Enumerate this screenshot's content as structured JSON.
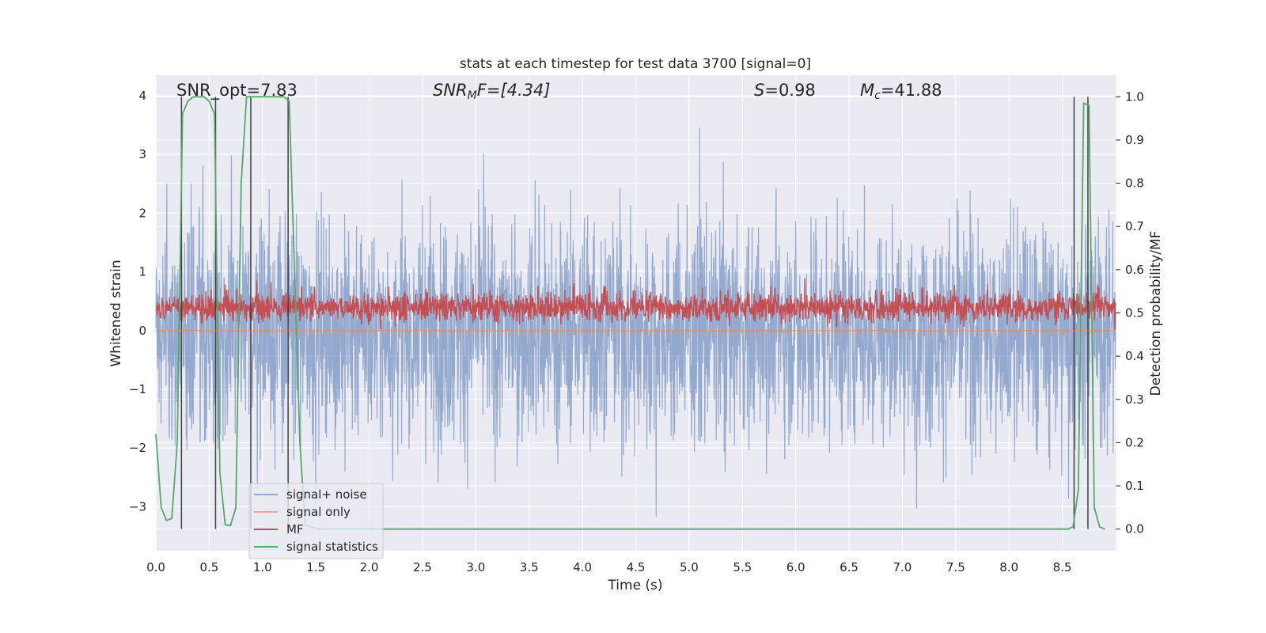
{
  "chart_data": {
    "type": "line",
    "title": "stats at each timestep for test data 3700 [signal=0]",
    "xlabel": "Time (s)",
    "ylabel": "Whitened strain",
    "y2label": "Detection probability/MF",
    "xlim": [
      0.0,
      9.0
    ],
    "ylim": [
      -3.75,
      4.35
    ],
    "y2lim": [
      -0.05,
      1.05
    ],
    "x_ticks": [
      "0.0",
      "0.5",
      "1.0",
      "1.5",
      "2.0",
      "2.5",
      "3.0",
      "3.5",
      "4.0",
      "4.5",
      "5.0",
      "5.5",
      "6.0",
      "6.5",
      "7.0",
      "7.5",
      "8.0",
      "8.5"
    ],
    "y_ticks": [
      "−3",
      "−2",
      "−1",
      "0",
      "1",
      "2",
      "3",
      "4"
    ],
    "y2_ticks": [
      "0.0",
      "0.1",
      "0.2",
      "0.3",
      "0.4",
      "0.5",
      "0.6",
      "0.7",
      "0.8",
      "0.9",
      "1.0"
    ],
    "grid": true,
    "legend_position": "lower-left",
    "annotations": {
      "snr_opt": "SNR_opt=7.83",
      "snr_mf_label": "SNR",
      "snr_mf_sub": "M",
      "snr_mf_tail": "F=[4.34]",
      "s_label": "S",
      "s_tail": "=0.98",
      "mc_label": "M",
      "mc_sub": "c",
      "mc_tail": "=41.88"
    },
    "series": [
      {
        "name": "signal+ noise",
        "color": "#4c72b0",
        "axis": "left",
        "description": "dense whitened strain noise fluctuating roughly between -3.4 and 4.0",
        "approx_range": [
          -3.4,
          4.0
        ]
      },
      {
        "name": "signal only",
        "color": "#dd8452",
        "axis": "left",
        "values": "flat at 0"
      },
      {
        "name": "MF",
        "color": "#c44e52",
        "axis": "right",
        "approx_range": [
          0.455,
          0.59
        ]
      },
      {
        "name": "signal statistics",
        "color": "#55a868",
        "axis": "right",
        "x": [
          0.0,
          0.05,
          0.1,
          0.15,
          0.2,
          0.25,
          0.3,
          0.35,
          0.4,
          0.45,
          0.5,
          0.55,
          0.6,
          0.65,
          0.7,
          0.75,
          0.8,
          0.85,
          0.9,
          0.95,
          1.0,
          1.05,
          1.1,
          1.15,
          1.2,
          1.25,
          1.3,
          1.35,
          1.4,
          1.45,
          1.5,
          1.55,
          1.6,
          8.5,
          8.55,
          8.6,
          8.65,
          8.7,
          8.75,
          8.8,
          8.85,
          8.9
        ],
        "y": [
          0.22,
          0.05,
          0.02,
          0.025,
          0.2,
          0.96,
          0.99,
          1.0,
          1.0,
          1.0,
          0.99,
          0.96,
          0.13,
          0.01,
          0.008,
          0.05,
          0.8,
          1.0,
          1.0,
          1.0,
          1.0,
          1.0,
          1.0,
          1.0,
          1.0,
          0.99,
          0.6,
          0.2,
          0.01,
          0.005,
          0.002,
          0.0,
          0.0,
          0.0,
          0.0,
          0.005,
          0.09,
          0.985,
          0.98,
          0.05,
          0.005,
          0.0
        ]
      }
    ],
    "vertical_markers": {
      "color": "#404040",
      "x": [
        0.24,
        0.56,
        0.89,
        1.24,
        8.61,
        8.74
      ]
    }
  }
}
